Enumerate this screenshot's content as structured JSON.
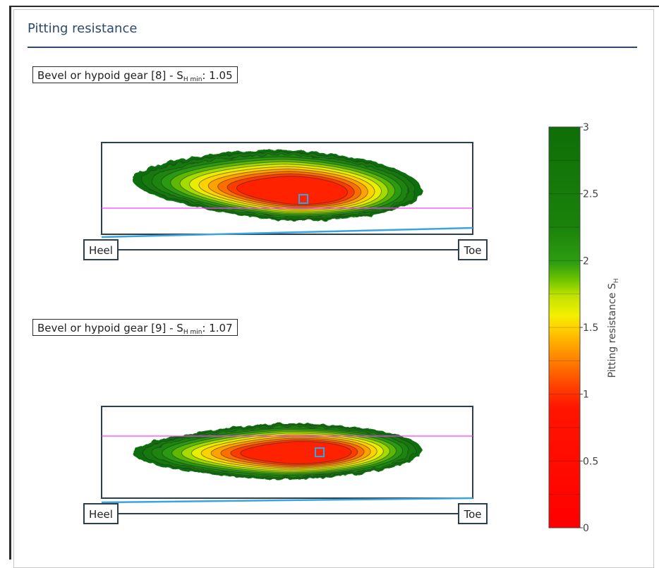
{
  "panel": {
    "title": "Pitting resistance"
  },
  "gears": [
    {
      "label_prefix": "Bevel or hypoid gear [8] - S",
      "label_sub": "H min",
      "label_suffix": ": 1.05",
      "heel": "Heel",
      "toe": "Toe"
    },
    {
      "label_prefix": "Bevel or hypoid gear [9] - S",
      "label_sub": "H min",
      "label_suffix": ": 1.07",
      "heel": "Heel",
      "toe": "Toe"
    }
  ],
  "chart_data": {
    "type": "heatmap",
    "colorbar": {
      "title_main": "Pitting resistance S",
      "title_sub": "H",
      "range": [
        0,
        3
      ],
      "ticks": [
        0,
        0.5,
        1,
        1.5,
        2,
        2.5,
        3
      ],
      "tick_labels": [
        "0",
        "0.5",
        "1",
        "1.5",
        "2",
        "2.5",
        "3"
      ],
      "colors": [
        "#ff0000",
        "#ff2600",
        "#ff6a00",
        "#ffae00",
        "#ffe600",
        "#c9ea00",
        "#7dcf00",
        "#2f9e12",
        "#1a7d0b",
        "#117007"
      ]
    },
    "contour_levels": [
      1.05,
      1.2,
      1.4,
      1.6,
      1.8,
      2.0,
      2.2,
      2.4,
      2.6,
      2.8,
      3.0
    ],
    "plots": [
      {
        "name": "Bevel or hypoid gear [8]",
        "min": 1.05
      },
      {
        "name": "Bevel or hypoid gear [9]",
        "min": 1.07
      }
    ]
  }
}
